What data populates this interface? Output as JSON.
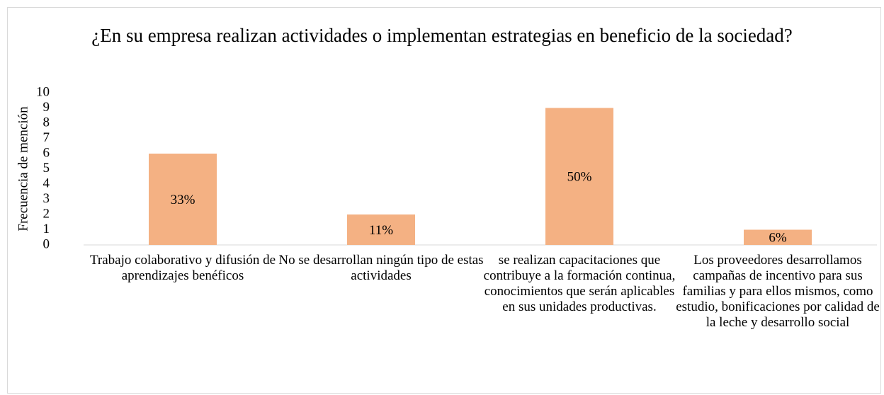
{
  "chart_data": {
    "type": "bar",
    "title": "¿En su empresa realizan actividades o implementan estrategias en beneficio de la sociedad?",
    "y_label": "Frecuencia de mención",
    "categories": [
      "Trabajo colaborativo y difusión de aprendizajes benéficos",
      "No se desarrollan ningún tipo de estas actividades",
      "se realizan capacitaciones que contribuye a la formación continua, conocimientos que serán aplicables en sus unidades productivas.",
      "Los proveedores desarrollamos campañas de incentivo para sus familias y para ellos mismos, como estudio, bonificaciones por calidad de la leche y desarrollo social"
    ],
    "values": [
      6,
      2,
      9,
      1
    ],
    "value_labels": [
      "33%",
      "11%",
      "50%",
      "6%"
    ],
    "color": "#f4b183",
    "ylim": [
      0,
      10
    ],
    "yticks": [
      0,
      1,
      2,
      3,
      4,
      5,
      6,
      7,
      8,
      9,
      10
    ],
    "grid": false
  }
}
